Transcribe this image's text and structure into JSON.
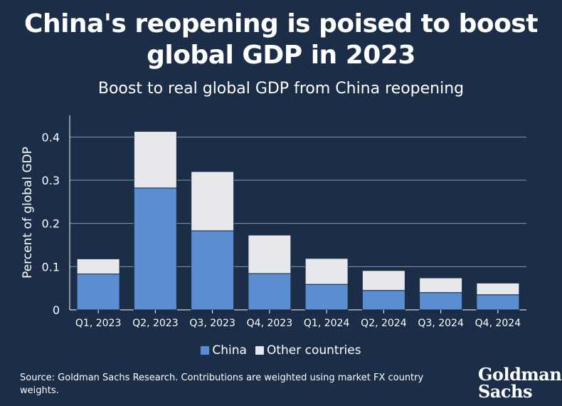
{
  "header": {
    "title_line1": "China's reopening is poised to boost",
    "title_line2": "global GDP in 2023",
    "subtitle": "Boost to real global GDP from China reopening"
  },
  "colors": {
    "background": "#1b2d47",
    "china": "#5b8ed1",
    "other": "#e6e8ec"
  },
  "legend": {
    "china": "China",
    "other": "Other countries"
  },
  "footer": {
    "source": "Source: Goldman Sachs Research. Contributions are weighted using market FX country weights.",
    "logo_line1": "Goldman",
    "logo_line2": "Sachs"
  },
  "chart_data": {
    "type": "bar",
    "stacked": true,
    "categories": [
      "Q1, 2023",
      "Q2, 2023",
      "Q3, 2023",
      "Q4, 2023",
      "Q1, 2024",
      "Q2, 2024",
      "Q3, 2024",
      "Q4, 2024"
    ],
    "series": [
      {
        "name": "China",
        "values": [
          0.083,
          0.282,
          0.183,
          0.084,
          0.059,
          0.045,
          0.04,
          0.035
        ]
      },
      {
        "name": "Other countries",
        "values": [
          0.035,
          0.131,
          0.137,
          0.089,
          0.06,
          0.046,
          0.034,
          0.027
        ]
      }
    ],
    "ylabel": "Percent of global GDP",
    "ylim": [
      0,
      0.45
    ],
    "yticks": [
      0,
      0.1,
      0.2,
      0.3,
      0.4
    ],
    "ytick_labels": [
      "0",
      "0.1",
      "0.2",
      "0.3",
      "0.4"
    ],
    "grid": true
  }
}
